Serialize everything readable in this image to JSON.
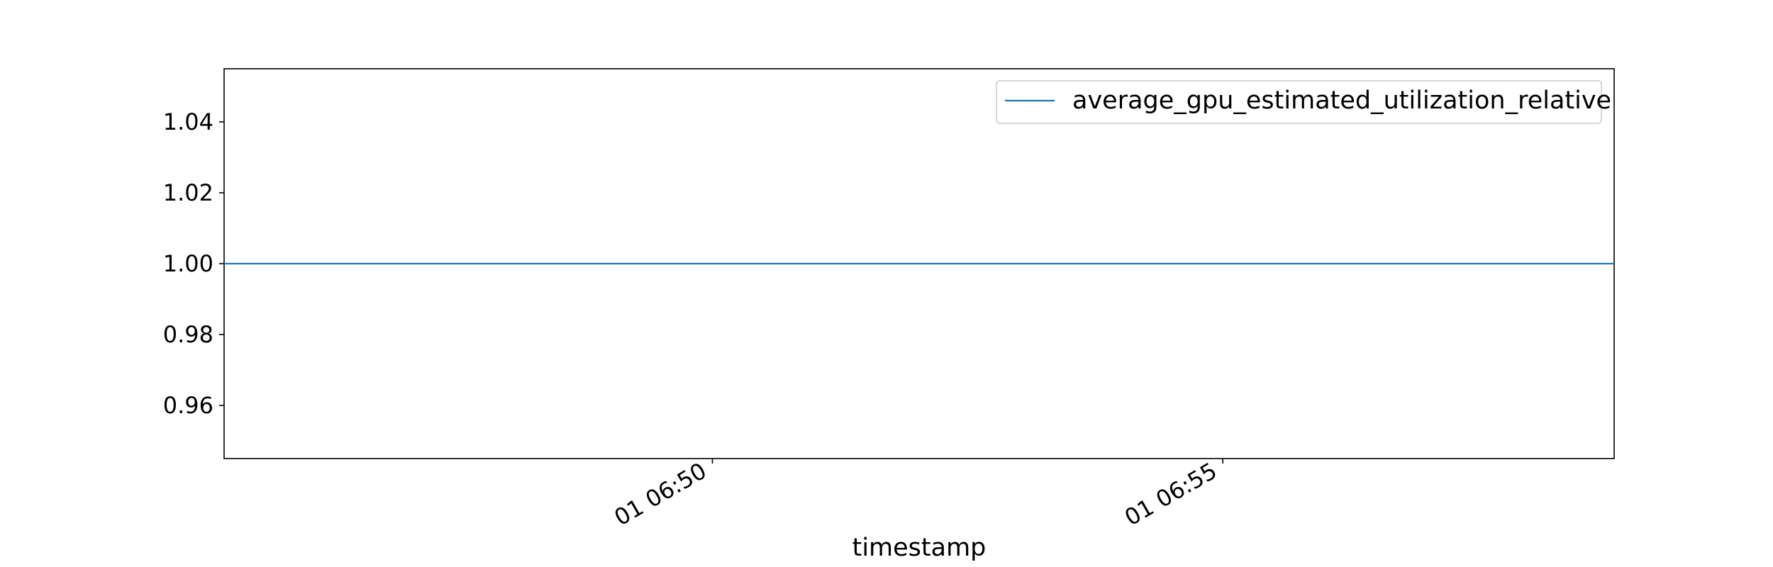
{
  "chart_data": {
    "type": "line",
    "title": "",
    "xlabel": "timestamp",
    "ylabel": "",
    "x_ticks": [
      "01 06:50",
      "01 06:55"
    ],
    "y_ticks": [
      0.96,
      0.98,
      1.0,
      1.02,
      1.04
    ],
    "y_tick_labels": [
      "0.96",
      "0.98",
      "1.00",
      "1.02",
      "1.04"
    ],
    "ylim": [
      0.945,
      1.055
    ],
    "xlim": [
      "01 06:45:13",
      "01 06:58:50"
    ],
    "grid": false,
    "legend_position": "upper right",
    "series": [
      {
        "name": "average_gpu_estimated_utilization_relative",
        "color": "#1f77b4",
        "x": [
          "01 06:45:13",
          "01 06:58:50"
        ],
        "values": [
          1.0,
          1.0
        ]
      }
    ]
  }
}
